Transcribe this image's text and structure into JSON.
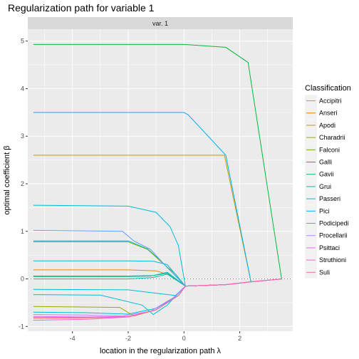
{
  "chart_data": {
    "type": "line",
    "title": "Regularization path for variable 1",
    "facet_label": "var. 1",
    "xlabel": "location in the regularization path  λ",
    "ylabel": "optimal coefficient  β",
    "xlim": [
      -5.6,
      3.9
    ],
    "ylim": [
      -1.1,
      5.25
    ],
    "x_ticks": [
      -4,
      -2,
      0,
      2
    ],
    "y_ticks": [
      -1,
      0,
      1,
      2,
      3,
      4,
      5
    ],
    "grid": true,
    "zero_line": "dotted",
    "legend_position": "right",
    "legend_title": "Classification",
    "series": [
      {
        "name": "Accipitri",
        "color": "#F8766D",
        "points": [
          [
            -5.4,
            -0.83
          ],
          [
            -3.5,
            -0.82
          ],
          [
            -2.0,
            -0.8
          ],
          [
            -1.0,
            -0.65
          ],
          [
            -0.2,
            -0.35
          ],
          [
            0.05,
            -0.15
          ],
          [
            1.5,
            -0.12
          ],
          [
            2.4,
            -0.06
          ],
          [
            3.5,
            0.0
          ]
        ]
      },
      {
        "name": "Anseri",
        "color": "#E58700",
        "points": [
          [
            -5.4,
            0.19
          ],
          [
            -2.0,
            0.19
          ],
          [
            -1.0,
            0.17
          ],
          [
            -0.5,
            0.08
          ],
          [
            0.05,
            -0.15
          ],
          [
            1.5,
            -0.12
          ],
          [
            2.4,
            -0.06
          ],
          [
            3.5,
            0.0
          ]
        ]
      },
      {
        "name": "Apodi",
        "color": "#C99800",
        "points": [
          [
            -5.4,
            2.6
          ],
          [
            1.45,
            2.6
          ],
          [
            2.4,
            -0.06
          ],
          [
            3.5,
            0.0
          ]
        ]
      },
      {
        "name": "Charadrii",
        "color": "#A3A500",
        "points": [
          [
            -5.4,
            -0.58
          ],
          [
            -2.3,
            -0.6
          ],
          [
            -1.8,
            -0.78
          ],
          [
            -1.0,
            -0.65
          ],
          [
            -0.2,
            -0.35
          ],
          [
            0.05,
            -0.15
          ],
          [
            1.5,
            -0.12
          ],
          [
            2.4,
            -0.06
          ],
          [
            3.5,
            0.0
          ]
        ]
      },
      {
        "name": "Falconi",
        "color": "#6BB100",
        "points": [
          [
            -5.4,
            0.78
          ],
          [
            -2.0,
            0.78
          ],
          [
            -1.3,
            0.62
          ],
          [
            -0.8,
            0.35
          ],
          [
            -0.3,
            0.1
          ],
          [
            0.05,
            -0.15
          ],
          [
            1.5,
            -0.12
          ],
          [
            2.4,
            -0.06
          ],
          [
            3.5,
            0.0
          ]
        ]
      },
      {
        "name": "Galli",
        "color": "#00BA38",
        "points": [
          [
            -5.4,
            4.93
          ],
          [
            0.0,
            4.93
          ],
          [
            1.5,
            4.87
          ],
          [
            2.3,
            4.55
          ],
          [
            3.5,
            0.0
          ]
        ]
      },
      {
        "name": "Gavii",
        "color": "#00BF7D",
        "points": [
          [
            -5.4,
            0.05
          ],
          [
            -2.0,
            0.05
          ],
          [
            -1.2,
            0.06
          ],
          [
            -0.6,
            0.12
          ],
          [
            0.05,
            -0.15
          ],
          [
            1.5,
            -0.12
          ],
          [
            2.4,
            -0.06
          ],
          [
            3.5,
            0.0
          ]
        ]
      },
      {
        "name": "Grui",
        "color": "#00C0AF",
        "points": [
          [
            -5.4,
            0.0
          ],
          [
            -2.0,
            0.0
          ],
          [
            -1.1,
            0.03
          ],
          [
            -0.6,
            0.1
          ],
          [
            0.05,
            -0.15
          ],
          [
            1.5,
            -0.12
          ],
          [
            2.4,
            -0.06
          ],
          [
            3.5,
            0.0
          ]
        ]
      },
      {
        "name": "Passeri",
        "color": "#00BCD8",
        "points": [
          [
            -5.4,
            0.38
          ],
          [
            -2.0,
            0.38
          ],
          [
            -1.1,
            0.37
          ],
          [
            -0.6,
            0.3
          ],
          [
            0.05,
            -0.15
          ],
          [
            1.5,
            -0.12
          ],
          [
            2.4,
            -0.06
          ],
          [
            3.5,
            0.0
          ]
        ]
      },
      {
        "name": "Pici",
        "color": "#00B0F6",
        "points": [
          [
            -5.4,
            3.5
          ],
          [
            0.0,
            3.5
          ],
          [
            0.15,
            3.45
          ],
          [
            1.5,
            2.6
          ],
          [
            2.4,
            -0.06
          ],
          [
            3.5,
            0.0
          ]
        ]
      },
      {
        "name": "Podicipedi",
        "color": "#619CFF",
        "points": [
          [
            -5.4,
            1.02
          ],
          [
            -2.2,
            1.0
          ],
          [
            -1.8,
            0.8
          ],
          [
            -1.2,
            0.62
          ],
          [
            -0.7,
            0.3
          ],
          [
            0.05,
            -0.15
          ],
          [
            1.5,
            -0.12
          ],
          [
            2.4,
            -0.06
          ],
          [
            3.5,
            0.0
          ]
        ]
      },
      {
        "name": "Procellarii",
        "color": "#B983FF",
        "points": [
          [
            -5.4,
            -0.75
          ],
          [
            -3.5,
            -0.76
          ],
          [
            -2.2,
            -0.78
          ],
          [
            -1.2,
            -0.68
          ],
          [
            -0.4,
            -0.4
          ],
          [
            0.05,
            -0.15
          ],
          [
            1.5,
            -0.12
          ],
          [
            2.4,
            -0.06
          ],
          [
            3.5,
            0.0
          ]
        ]
      },
      {
        "name": "Psittaci",
        "color": "#E76BF3",
        "points": [
          [
            -5.4,
            -0.79
          ],
          [
            -3.5,
            -0.8
          ],
          [
            -2.0,
            -0.79
          ],
          [
            -1.0,
            -0.65
          ],
          [
            -0.2,
            -0.35
          ],
          [
            0.05,
            -0.15
          ],
          [
            1.5,
            -0.12
          ],
          [
            2.4,
            -0.06
          ],
          [
            3.5,
            0.0
          ]
        ]
      },
      {
        "name": "Struthioni",
        "color": "#FD61D1",
        "points": [
          [
            -5.4,
            -0.87
          ],
          [
            -3.5,
            -0.85
          ],
          [
            -2.0,
            -0.8
          ],
          [
            -1.0,
            -0.65
          ],
          [
            -0.2,
            -0.35
          ],
          [
            0.05,
            -0.15
          ],
          [
            1.5,
            -0.12
          ],
          [
            2.4,
            -0.06
          ],
          [
            3.5,
            0.0
          ]
        ]
      },
      {
        "name": "Suli",
        "color": "#FF67A4",
        "points": [
          [
            -5.4,
            -0.81
          ],
          [
            -3.5,
            -0.81
          ],
          [
            -2.0,
            -0.8
          ],
          [
            -1.0,
            -0.65
          ],
          [
            -0.2,
            -0.35
          ],
          [
            0.05,
            -0.15
          ],
          [
            1.5,
            -0.12
          ],
          [
            2.4,
            -0.06
          ],
          [
            3.5,
            0.0
          ]
        ]
      }
    ],
    "extra_paths": [
      {
        "color": "#00BCD8",
        "points": [
          [
            -5.4,
            1.55
          ],
          [
            -2.0,
            1.53
          ],
          [
            -1.0,
            1.4
          ],
          [
            -0.5,
            1.1
          ],
          [
            -0.2,
            0.7
          ],
          [
            0.05,
            -0.15
          ],
          [
            1.5,
            -0.12
          ],
          [
            2.4,
            -0.06
          ],
          [
            3.5,
            0.0
          ]
        ]
      },
      {
        "color": "#00BCD8",
        "points": [
          [
            -5.4,
            -0.22
          ],
          [
            -2.0,
            -0.23
          ],
          [
            -1.0,
            -0.3
          ],
          [
            -0.3,
            -0.35
          ],
          [
            0.05,
            -0.15
          ],
          [
            1.5,
            -0.12
          ],
          [
            2.4,
            -0.06
          ],
          [
            3.5,
            0.0
          ]
        ]
      },
      {
        "color": "#00BCD8",
        "points": [
          [
            -5.4,
            -0.33
          ],
          [
            -3.0,
            -0.34
          ],
          [
            -1.5,
            -0.55
          ],
          [
            -1.1,
            -0.75
          ],
          [
            -0.6,
            -0.55
          ],
          [
            0.05,
            -0.15
          ],
          [
            1.5,
            -0.12
          ],
          [
            2.4,
            -0.06
          ],
          [
            3.5,
            0.0
          ]
        ]
      },
      {
        "color": "#00BCD8",
        "points": [
          [
            -5.4,
            -0.7
          ],
          [
            -3.5,
            -0.71
          ],
          [
            -2.0,
            -0.74
          ],
          [
            -1.0,
            -0.62
          ],
          [
            -0.2,
            -0.35
          ],
          [
            0.05,
            -0.15
          ],
          [
            1.5,
            -0.12
          ],
          [
            2.4,
            -0.06
          ],
          [
            3.5,
            0.0
          ]
        ]
      },
      {
        "color": "#00BCD8",
        "points": [
          [
            -5.4,
            0.8
          ],
          [
            -2.0,
            0.8
          ],
          [
            -1.3,
            0.63
          ],
          [
            -0.8,
            0.36
          ],
          [
            0.05,
            -0.15
          ],
          [
            1.5,
            -0.12
          ],
          [
            2.4,
            -0.06
          ],
          [
            3.5,
            0.0
          ]
        ]
      },
      {
        "color": "#00BCD8",
        "points": [
          [
            -5.4,
            0.06
          ],
          [
            -2.0,
            0.06
          ],
          [
            -1.1,
            0.07
          ],
          [
            -0.6,
            0.14
          ],
          [
            0.05,
            -0.15
          ],
          [
            1.5,
            -0.12
          ],
          [
            2.4,
            -0.06
          ],
          [
            3.5,
            0.0
          ]
        ]
      }
    ]
  }
}
